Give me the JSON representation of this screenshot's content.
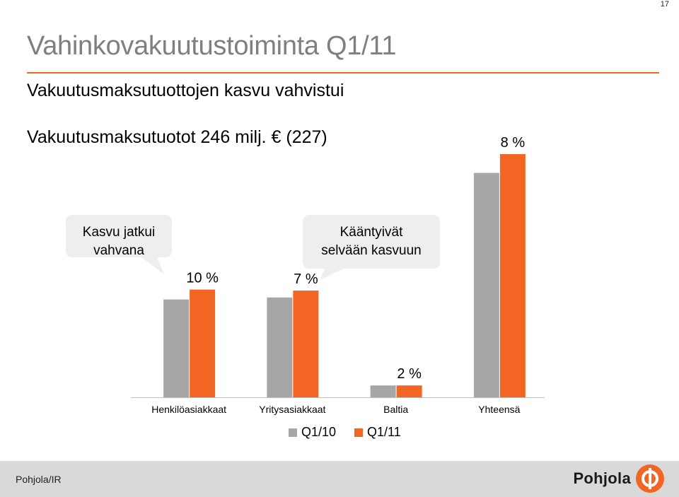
{
  "page_number": "17",
  "title": "Vahinkovakuutustoiminta Q1/11",
  "subtitle": "Vakuutusmaksutuottojen kasvu vahvistui",
  "headline": "Vakuutusmaksutuotot 246 milj. € (227)",
  "colors": {
    "q1_10": "#a6a6a6",
    "q1_11": "#f26522",
    "accent": "#f26522",
    "callout_bg": "#eeeeee"
  },
  "chart_data": {
    "type": "bar",
    "categories": [
      "Henkilöasiakkaat",
      "Yritysasiakkaat",
      "Baltia",
      "Yhteensä"
    ],
    "series": [
      {
        "name": "Q1/10",
        "values": [
          99,
          101,
          12,
          227
        ]
      },
      {
        "name": "Q1/11",
        "values": [
          109,
          108,
          12,
          246
        ]
      }
    ],
    "data_labels": [
      "10 %",
      "7 %",
      "2 %",
      "8 %"
    ],
    "ylim": [
      0,
      250
    ],
    "legend_position": "bottom",
    "grid": false,
    "annotations": [
      {
        "text": "Kasvu jatkui vahvana"
      },
      {
        "text": "Kääntyivät selvään kasvuun"
      }
    ]
  },
  "footer": {
    "label": "Pohjola/IR",
    "logo_text": "Pohjola",
    "logo_icon": "pohjola-logo-icon"
  }
}
